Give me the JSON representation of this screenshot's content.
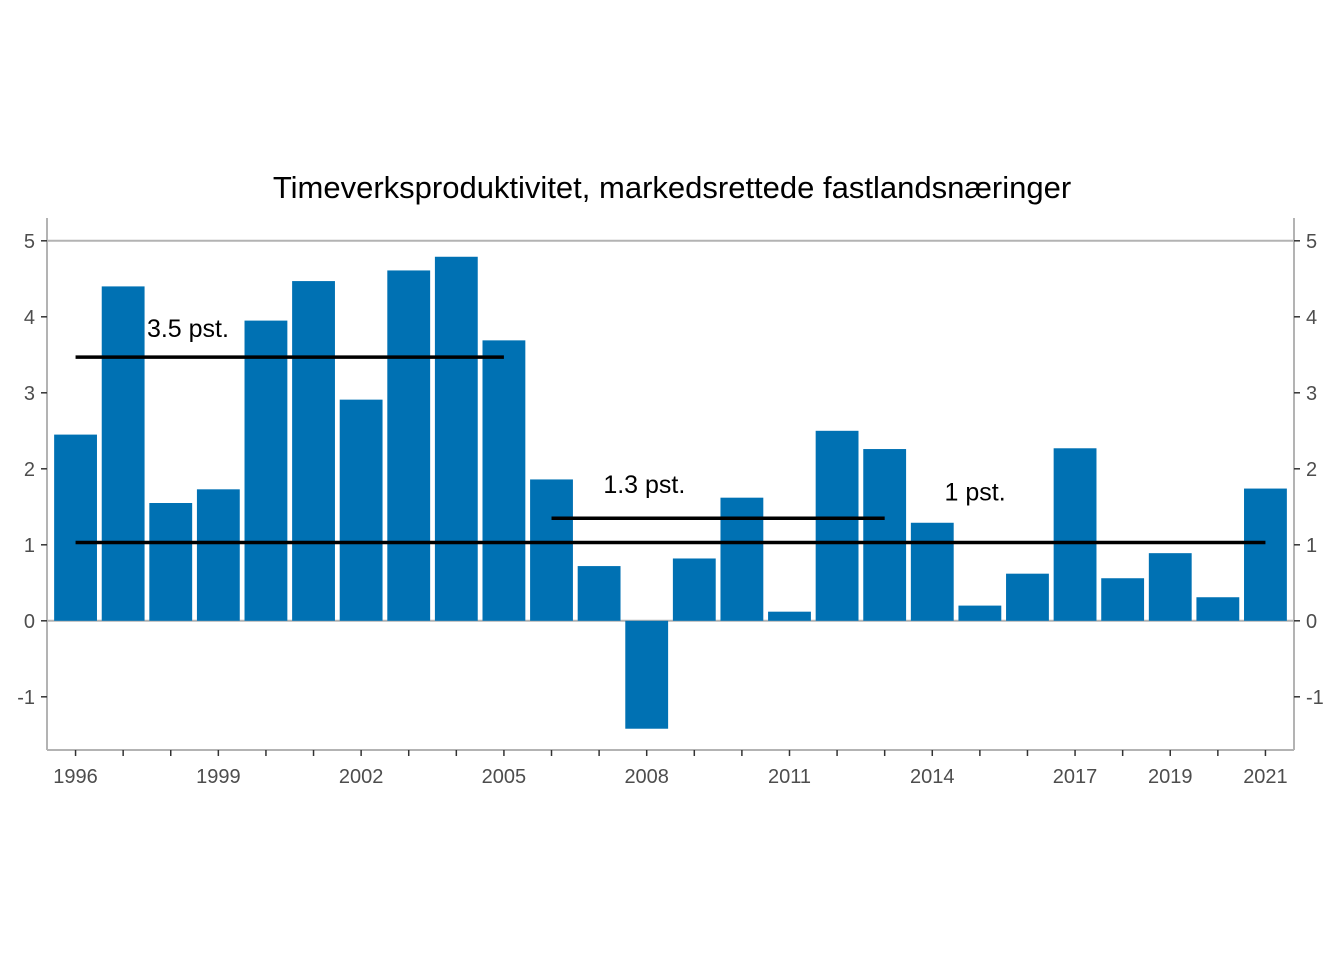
{
  "chart_data": {
    "type": "bar",
    "title": "Timeverksproduktivitet, markedsrettede fastlandsnæringer",
    "xlabel": "",
    "ylabel": "",
    "ylim": [
      -1.7,
      5.3
    ],
    "yticks": [
      -1,
      0,
      1,
      2,
      3,
      4,
      5
    ],
    "grid": false,
    "secondary_y_axis": true,
    "categories": [
      1996,
      1997,
      1998,
      1999,
      2000,
      2001,
      2002,
      2003,
      2004,
      2005,
      2006,
      2007,
      2008,
      2009,
      2010,
      2011,
      2012,
      2013,
      2014,
      2015,
      2016,
      2017,
      2018,
      2019,
      2020,
      2021
    ],
    "xtick_labels": [
      "1996",
      "1999",
      "2002",
      "2005",
      "2008",
      "2011",
      "2014",
      "2017",
      "2019",
      "2021"
    ],
    "series": [
      {
        "color": "#0071b3",
        "values": [
          2.45,
          4.4,
          1.55,
          1.73,
          3.95,
          4.47,
          2.91,
          4.61,
          4.79,
          3.69,
          1.86,
          0.72,
          -1.42,
          0.82,
          1.62,
          0.12,
          2.5,
          2.26,
          1.29,
          0.2,
          0.62,
          2.27,
          0.56,
          0.89,
          0.31,
          1.74
        ]
      }
    ],
    "reference_lines": [
      {
        "label": "3.5 pst.",
        "x_start": 1996,
        "x_end": 2005,
        "y": 3.47
      },
      {
        "label": "1.3 pst.",
        "x_start": 2006,
        "x_end": 2013,
        "y": 1.35
      },
      {
        "label": "1 pst.",
        "x_start": 1996,
        "x_end": 2021,
        "y": 1.03
      }
    ]
  }
}
